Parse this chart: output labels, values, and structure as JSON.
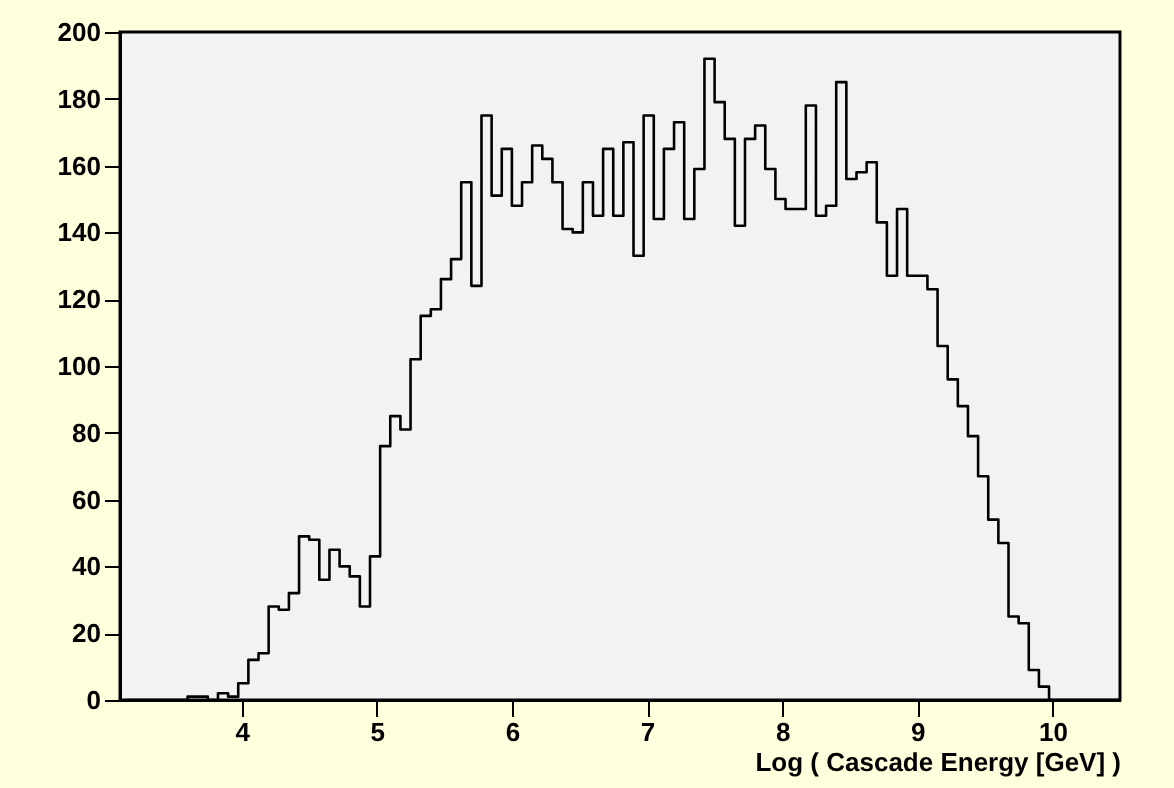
{
  "chart_data": {
    "type": "histogram",
    "xlabel": "Log ( Cascade Energy [GeV] )",
    "color": "#000000",
    "bins": [
      3.15,
      3.225,
      3.3,
      3.375,
      3.45,
      3.525,
      3.6,
      3.675,
      3.75,
      3.825,
      3.9,
      3.975,
      4.05,
      4.125,
      4.2,
      4.275,
      4.35,
      4.425,
      4.5,
      4.575,
      4.65,
      4.725,
      4.8,
      4.875,
      4.95,
      5.025,
      5.1,
      5.175,
      5.25,
      5.325,
      5.4,
      5.475,
      5.55,
      5.625,
      5.7,
      5.775,
      5.85,
      5.925,
      6.0,
      6.075,
      6.15,
      6.225,
      6.3,
      6.375,
      6.45,
      6.525,
      6.6,
      6.675,
      6.75,
      6.825,
      6.9,
      6.975,
      7.05,
      7.125,
      7.2,
      7.275,
      7.35,
      7.425,
      7.5,
      7.575,
      7.65,
      7.725,
      7.8,
      7.875,
      7.95,
      8.025,
      8.1,
      8.175,
      8.25,
      8.325,
      8.4,
      8.475,
      8.55,
      8.625,
      8.7,
      8.775,
      8.85,
      8.925,
      9.0,
      9.075,
      9.15,
      9.225,
      9.3,
      9.375,
      9.45,
      9.525,
      9.6,
      9.675,
      9.75,
      9.825,
      9.9,
      9.975,
      10.05,
      10.125,
      10.2,
      10.275,
      10.35,
      10.425,
      10.5
    ],
    "values": [
      0,
      0,
      0,
      0,
      0,
      0,
      1,
      1,
      0,
      2,
      1,
      5,
      12,
      14,
      28,
      27,
      32,
      49,
      48,
      36,
      45,
      40,
      37,
      28,
      43,
      76,
      85,
      81,
      102,
      115,
      117,
      126,
      132,
      155,
      124,
      175,
      151,
      165,
      148,
      155,
      166,
      162,
      155,
      141,
      140,
      155,
      145,
      165,
      145,
      167,
      133,
      175,
      144,
      165,
      173,
      144,
      159,
      192,
      179,
      168,
      142,
      168,
      172,
      159,
      150,
      147,
      147,
      178,
      145,
      148,
      185,
      156,
      158,
      161,
      143,
      127,
      147,
      127,
      127,
      123,
      106,
      96,
      88,
      79,
      67,
      54,
      47,
      25,
      23,
      9,
      4,
      0,
      0,
      0,
      0,
      0,
      0,
      0
    ],
    "xlim": [
      3.1,
      10.5
    ],
    "xticks": [
      4,
      5,
      6,
      7,
      8,
      9,
      10
    ],
    "ylim": [
      0,
      200
    ],
    "yticks": [
      0,
      20,
      40,
      60,
      80,
      100,
      120,
      140,
      160,
      180,
      200
    ]
  }
}
